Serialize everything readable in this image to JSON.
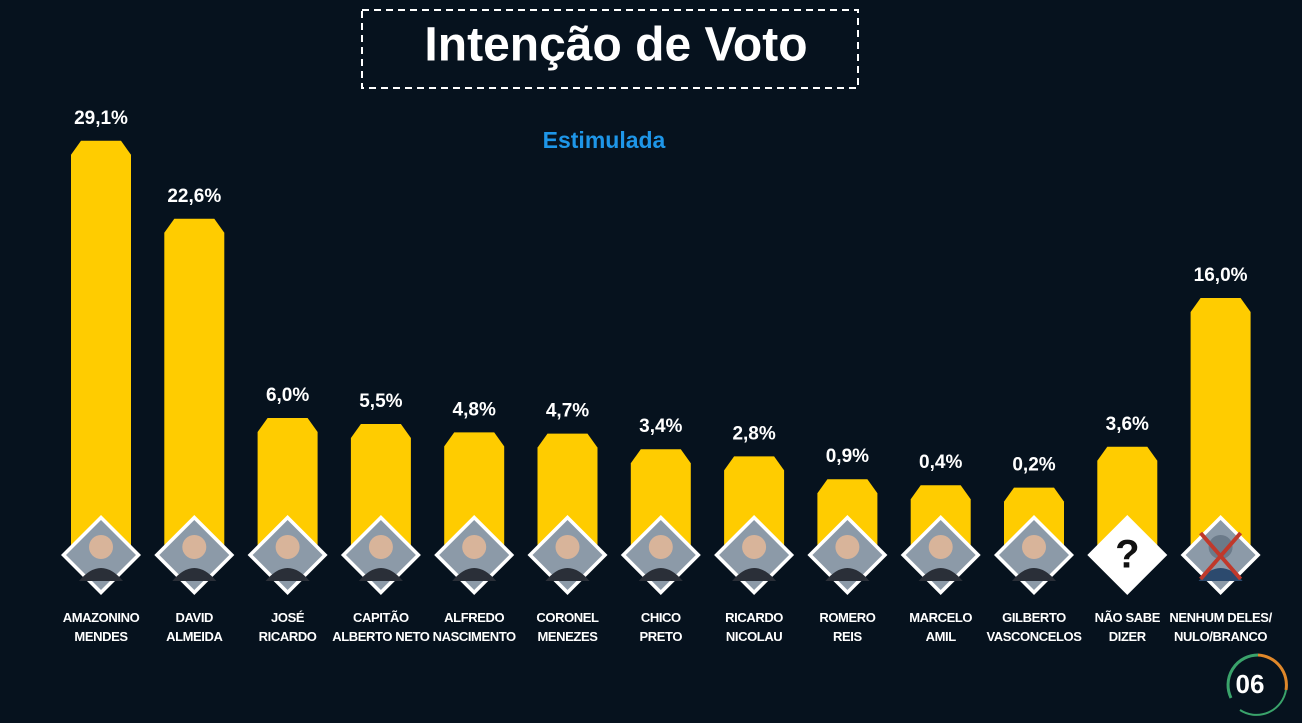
{
  "chart_data": {
    "type": "bar",
    "title": "Intenção de Voto",
    "subtitle": "Estimulada",
    "categories": [
      "AMAZONINO\nMENDES",
      "DAVID\nALMEIDA",
      "JOSÉ\nRICARDO",
      "CAPITÃO\nALBERTO NETO",
      "ALFREDO\nNASCIMENTO",
      "CORONEL\nMENEZES",
      "CHICO\nPRETO",
      "RICARDO\nNICOLAU",
      "ROMERO\nREIS",
      "MARCELO\nAMIL",
      "GILBERTO\nVASCONCELOS",
      "NÃO SABE\nDIZER",
      "NENHUM DELES/\nNULO/BRANCO"
    ],
    "values": [
      29.1,
      22.6,
      6.0,
      5.5,
      4.8,
      4.7,
      3.4,
      2.8,
      0.9,
      0.4,
      0.2,
      3.6,
      16.0
    ],
    "value_labels": [
      "29,1%",
      "22,6%",
      "6,0%",
      "5,5%",
      "4,8%",
      "4,7%",
      "3,4%",
      "2,8%",
      "0,9%",
      "0,4%",
      "0,2%",
      "3,6%",
      "16,0%"
    ],
    "color": "#ffcc00",
    "icon_text": "?",
    "page_number": "06"
  }
}
